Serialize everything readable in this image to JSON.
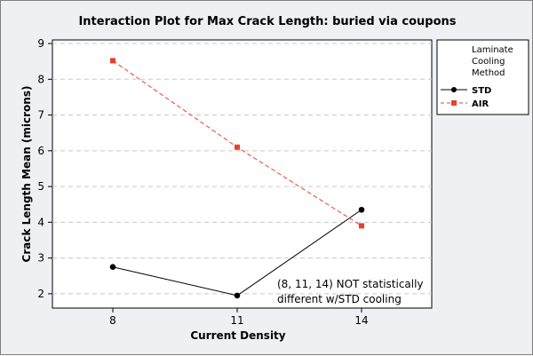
{
  "chart_data": {
    "type": "line",
    "title": "Interaction Plot for Max Crack Length: buried via coupons",
    "xlabel": "Current Density",
    "ylabel": "Crack Length Mean (microns)",
    "categories": [
      "8",
      "11",
      "14"
    ],
    "ylim": [
      1.6,
      9.1
    ],
    "yticks": [
      2,
      3,
      4,
      5,
      6,
      7,
      8,
      9
    ],
    "grid": "horizontal dashed",
    "legend": {
      "title_lines": [
        "Laminate",
        "Cooling",
        "Method"
      ],
      "placement": "right"
    },
    "series": [
      {
        "name": "STD",
        "values": [
          2.75,
          1.95,
          4.35
        ],
        "color": "#000000",
        "line": "solid",
        "marker": "circle"
      },
      {
        "name": "AIR",
        "values": [
          8.52,
          6.1,
          3.9
        ],
        "color": "#e8402a",
        "line": "dashed",
        "marker": "square"
      }
    ],
    "annotation": {
      "lines": [
        "(8, 11, 14) NOT statistically",
        "different w/STD cooling"
      ]
    }
  }
}
